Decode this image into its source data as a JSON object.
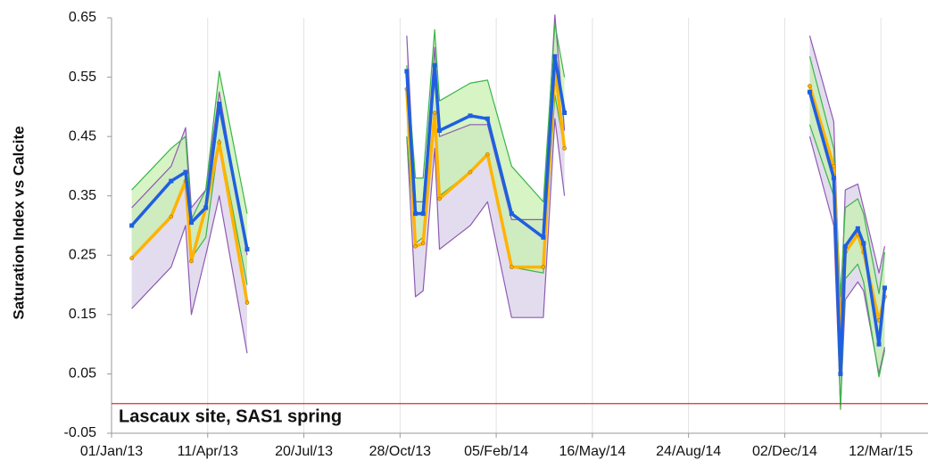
{
  "chart_data": {
    "type": "line",
    "annotation": "Lascaux site, SAS1 spring",
    "y_label": "Saturation Index vs Calcite",
    "x": [
      "2013-01-22",
      "2013-03-04",
      "2013-03-19",
      "2013-03-25",
      "2013-04-09",
      "2013-04-23",
      "2013-05-22",
      "2013-08-15",
      "2013-11-04",
      "2013-11-13",
      "2013-11-21",
      "2013-12-03",
      "2013-12-08",
      "2014-01-09",
      "2014-01-27",
      "2014-02-21",
      "2014-03-26",
      "2014-04-07",
      "2014-04-17",
      "2014-09-01",
      "2014-12-28",
      "2015-01-22",
      "2015-01-29",
      "2015-02-03",
      "2015-02-16",
      "2015-02-22",
      "2015-03-10",
      "2015-03-16"
    ],
    "series": [
      {
        "color": "#8e5bb0",
        "fill": "#d9d0ea",
        "values": [
          0.33,
          0.4,
          0.465,
          0.33,
          0.36,
          0.525,
          0.25,
          null,
          0.62,
          0.34,
          0.34,
          0.6,
          0.45,
          0.47,
          0.47,
          0.31,
          0.31,
          0.655,
          0.46,
          null,
          0.62,
          0.475,
          0.14,
          0.36,
          0.37,
          0.33,
          0.22,
          0.265
        ]
      },
      {
        "color": "#8e5bb0",
        "values": [
          0.16,
          0.23,
          0.3,
          0.15,
          0.25,
          0.35,
          0.085,
          null,
          0.45,
          0.18,
          0.19,
          0.43,
          0.26,
          0.3,
          0.34,
          0.145,
          0.145,
          0.48,
          0.35,
          null,
          0.45,
          0.3,
          -0.005,
          0.175,
          0.205,
          0.19,
          0.05,
          0.095
        ]
      },
      {
        "color": "#3cb44a",
        "fill": "#c8f0b0",
        "values": [
          0.36,
          0.43,
          0.45,
          0.31,
          0.36,
          0.56,
          0.32,
          null,
          0.57,
          0.38,
          0.38,
          0.63,
          0.51,
          0.54,
          0.545,
          0.4,
          0.34,
          0.64,
          0.55,
          null,
          0.585,
          0.43,
          0.18,
          0.33,
          0.345,
          0.32,
          0.185,
          0.255
        ]
      },
      {
        "color": "#3cb44a",
        "values": [
          0.245,
          0.315,
          0.37,
          0.245,
          0.28,
          0.445,
          0.2,
          null,
          0.45,
          0.27,
          0.28,
          0.475,
          0.35,
          0.39,
          0.42,
          0.23,
          0.22,
          0.52,
          0.43,
          null,
          0.47,
          0.35,
          -0.01,
          0.21,
          0.235,
          0.205,
          0.045,
          0.09
        ]
      },
      {
        "color": "#ffb300",
        "width": 3.5,
        "marker": "circle",
        "values": [
          0.245,
          0.315,
          0.375,
          0.24,
          0.33,
          0.44,
          0.17,
          null,
          0.53,
          0.265,
          0.27,
          0.49,
          0.345,
          0.39,
          0.42,
          0.23,
          0.23,
          0.565,
          0.43,
          null,
          0.535,
          0.4,
          0.095,
          0.255,
          0.285,
          0.255,
          0.14,
          0.18
        ]
      },
      {
        "color": "#1f5fe0",
        "width": 3.5,
        "marker": "square",
        "values": [
          0.3,
          0.375,
          0.39,
          0.305,
          0.33,
          0.505,
          0.26,
          null,
          0.56,
          0.32,
          0.32,
          0.57,
          0.46,
          0.485,
          0.48,
          0.32,
          0.28,
          0.585,
          0.49,
          null,
          0.525,
          0.38,
          0.05,
          0.265,
          0.295,
          0.27,
          0.1,
          0.195
        ]
      }
    ],
    "hline": {
      "value": 0,
      "color": "#e8272a"
    },
    "xlim": [
      "2013-01-01",
      "2015-04-30"
    ],
    "xticks": [
      {
        "value": "2013-01-01",
        "label": "01/Jan/13"
      },
      {
        "value": "2013-04-11",
        "label": "11/Apr/13"
      },
      {
        "value": "2013-07-20",
        "label": "20/Jul/13"
      },
      {
        "value": "2013-10-28",
        "label": "28/Oct/13"
      },
      {
        "value": "2014-02-05",
        "label": "05/Feb/14"
      },
      {
        "value": "2014-05-16",
        "label": "16/May/14"
      },
      {
        "value": "2014-08-24",
        "label": "24/Aug/14"
      },
      {
        "value": "2014-12-02",
        "label": "02/Dec/14"
      },
      {
        "value": "2015-03-12",
        "label": "12/Mar/15"
      }
    ],
    "ylim": [
      -0.05,
      0.65
    ],
    "yticks": [
      -0.05,
      0.05,
      0.15,
      0.25,
      0.35,
      0.45,
      0.55,
      0.65
    ],
    "xgrid": true
  }
}
